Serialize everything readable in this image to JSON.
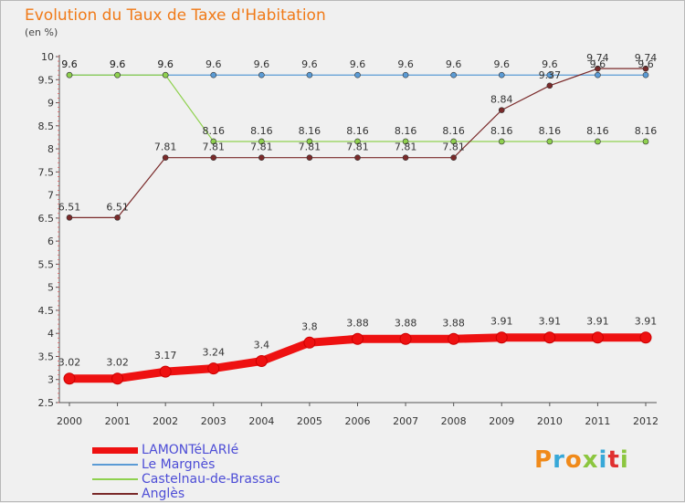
{
  "title": "Evolution du Taux de Taxe d'Habitation",
  "subtitle": "(en %)",
  "logo": {
    "text": "Proxiti",
    "colors": [
      "#f08a1a",
      "#38a8d8",
      "#f08a1a",
      "#8cc63f",
      "#38a8d8",
      "#e03030",
      "#8cc63f"
    ]
  },
  "chart_data": {
    "type": "line",
    "title": "Evolution du Taux de Taxe d'Habitation",
    "ylabel": "(en %)",
    "ylim": [
      2.5,
      10
    ],
    "yticks": [
      "2.5",
      "3",
      "3.5",
      "4",
      "4.5",
      "5",
      "5.5",
      "6",
      "6.5",
      "7",
      "7.5",
      "8",
      "8.5",
      "9",
      "9.5",
      "10"
    ],
    "x": [
      "2000",
      "2001",
      "2002",
      "2003",
      "2004",
      "2005",
      "2006",
      "2007",
      "2008",
      "2009",
      "2010",
      "2011",
      "2012"
    ],
    "grid": false,
    "legend_position": "bottom-left",
    "series": [
      {
        "name": "LAMONTéLARIé",
        "color": "#ee1111",
        "values": [
          3.02,
          3.02,
          3.17,
          3.24,
          3.4,
          3.8,
          3.88,
          3.88,
          3.88,
          3.91,
          3.91,
          3.91,
          3.91
        ],
        "labels": [
          "3.02",
          "3.02",
          "3.17",
          "3.24",
          "3.4",
          "3.8",
          "3.88",
          "3.88",
          "3.88",
          "3.91",
          "3.91",
          "3.91",
          "3.91"
        ]
      },
      {
        "name": "Le Margnès",
        "color": "#5b9bd5",
        "values": [
          9.6,
          9.6,
          9.6,
          9.6,
          9.6,
          9.6,
          9.6,
          9.6,
          9.6,
          9.6,
          9.6,
          9.6,
          9.6
        ],
        "labels": [
          "9.6",
          "9.6",
          "9.6",
          "9.6",
          "9.6",
          "9.6",
          "9.6",
          "9.6",
          "9.6",
          "9.6",
          "9.6",
          "9.6",
          "9.6"
        ]
      },
      {
        "name": "Castelnau-de-Brassac",
        "color": "#8fd14f",
        "values": [
          9.6,
          9.6,
          9.6,
          8.16,
          8.16,
          8.16,
          8.16,
          8.16,
          8.16,
          8.16,
          8.16,
          8.16,
          8.16
        ],
        "labels": [
          "9.6",
          "9.6",
          "9.6",
          "8.16",
          "8.16",
          "8.16",
          "8.16",
          "8.16",
          "8.16",
          "8.16",
          "8.16",
          "8.16",
          "8.16"
        ]
      },
      {
        "name": "Anglès",
        "color": "#7a2a2a",
        "values": [
          6.51,
          6.51,
          7.81,
          7.81,
          7.81,
          7.81,
          7.81,
          7.81,
          7.81,
          8.84,
          9.37,
          9.74,
          9.74
        ],
        "labels": [
          "6.51",
          "6.51",
          "7.81",
          "7.81",
          "7.81",
          "7.81",
          "7.81",
          "7.81",
          "7.81",
          "8.84",
          "9.37",
          "9.74",
          "9.74"
        ]
      }
    ]
  }
}
